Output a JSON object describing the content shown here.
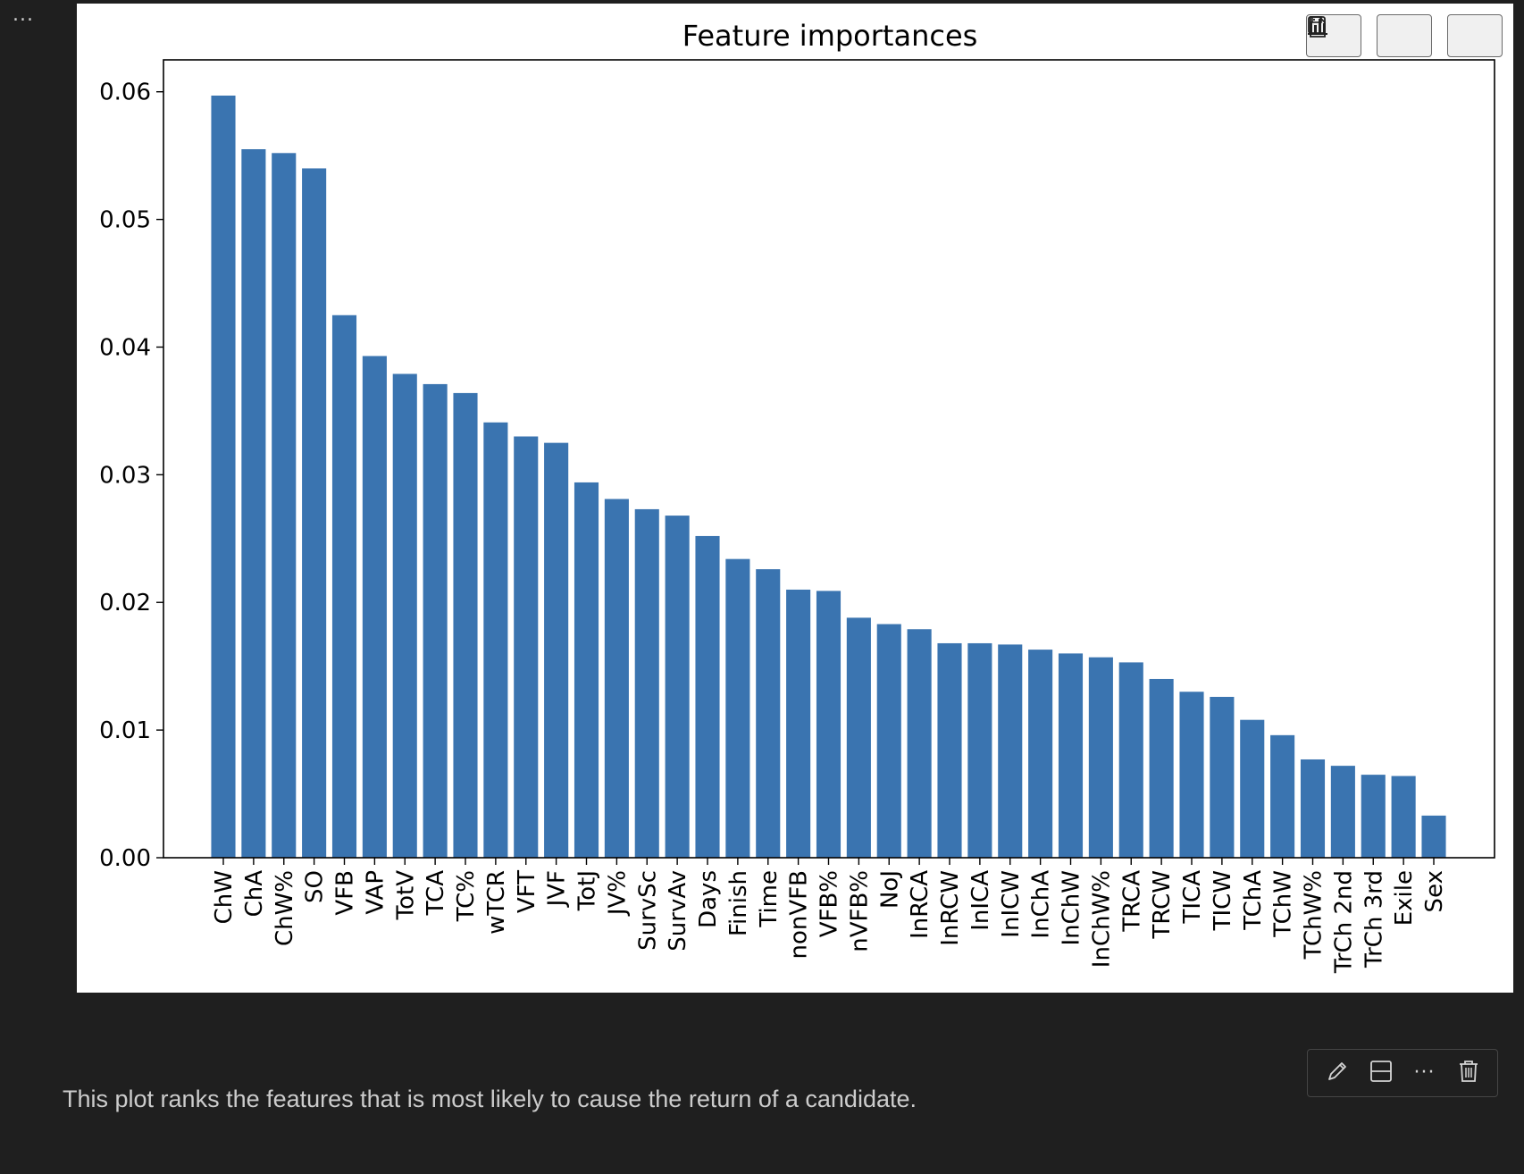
{
  "cell": {
    "more_label": "...",
    "markdown_text": "This plot ranks the features that is most likely to cause the return of a candidate."
  },
  "plot_toolbar": {
    "buttons": [
      "copy-icon",
      "bar-chart-icon",
      "save-icon"
    ]
  },
  "cell_toolbar": {
    "buttons": [
      "pencil-icon",
      "split-cell-icon",
      "more-icon",
      "trash-icon"
    ],
    "more_label": "···"
  },
  "colors": {
    "bar": "#3a74b0",
    "background": "#1f1f1f",
    "text": "#cccccc"
  },
  "chart_data": {
    "type": "bar",
    "title": "Feature importances",
    "xlabel": "",
    "ylabel": "",
    "ylim": [
      0,
      0.0625
    ],
    "yticks": [
      0.0,
      0.01,
      0.02,
      0.03,
      0.04,
      0.05,
      0.06
    ],
    "ytick_labels": [
      "0.00",
      "0.01",
      "0.02",
      "0.03",
      "0.04",
      "0.05",
      "0.06"
    ],
    "grid": false,
    "categories": [
      "ChW",
      "ChA",
      "ChW%",
      "SO",
      "VFB",
      "VAP",
      "TotV",
      "TCA",
      "TC%",
      "wTCR",
      "VFT",
      "JVF",
      "TotJ",
      "JV%",
      "SurvSc",
      "SurvAv",
      "Days",
      "Finish",
      "Time",
      "nonVFB",
      "VFB%",
      "nVFB%",
      "NoJ",
      "InRCA",
      "InRCW",
      "InICA",
      "InICW",
      "InChA",
      "InChW",
      "InChW%",
      "TRCA",
      "TRCW",
      "TICA",
      "TICW",
      "TChA",
      "TChW",
      "TChW%",
      "TrCh 2nd",
      "TrCh 3rd",
      "Exile",
      "Sex"
    ],
    "values": [
      0.0597,
      0.0555,
      0.0552,
      0.054,
      0.0425,
      0.0393,
      0.0379,
      0.0371,
      0.0364,
      0.0341,
      0.033,
      0.0325,
      0.0294,
      0.0281,
      0.0273,
      0.0268,
      0.0252,
      0.0234,
      0.0226,
      0.021,
      0.0209,
      0.0188,
      0.0183,
      0.0179,
      0.0168,
      0.0168,
      0.0167,
      0.0163,
      0.016,
      0.0157,
      0.0153,
      0.014,
      0.013,
      0.0126,
      0.0108,
      0.0096,
      0.0077,
      0.0072,
      0.0065,
      0.0064,
      0.0033
    ]
  }
}
